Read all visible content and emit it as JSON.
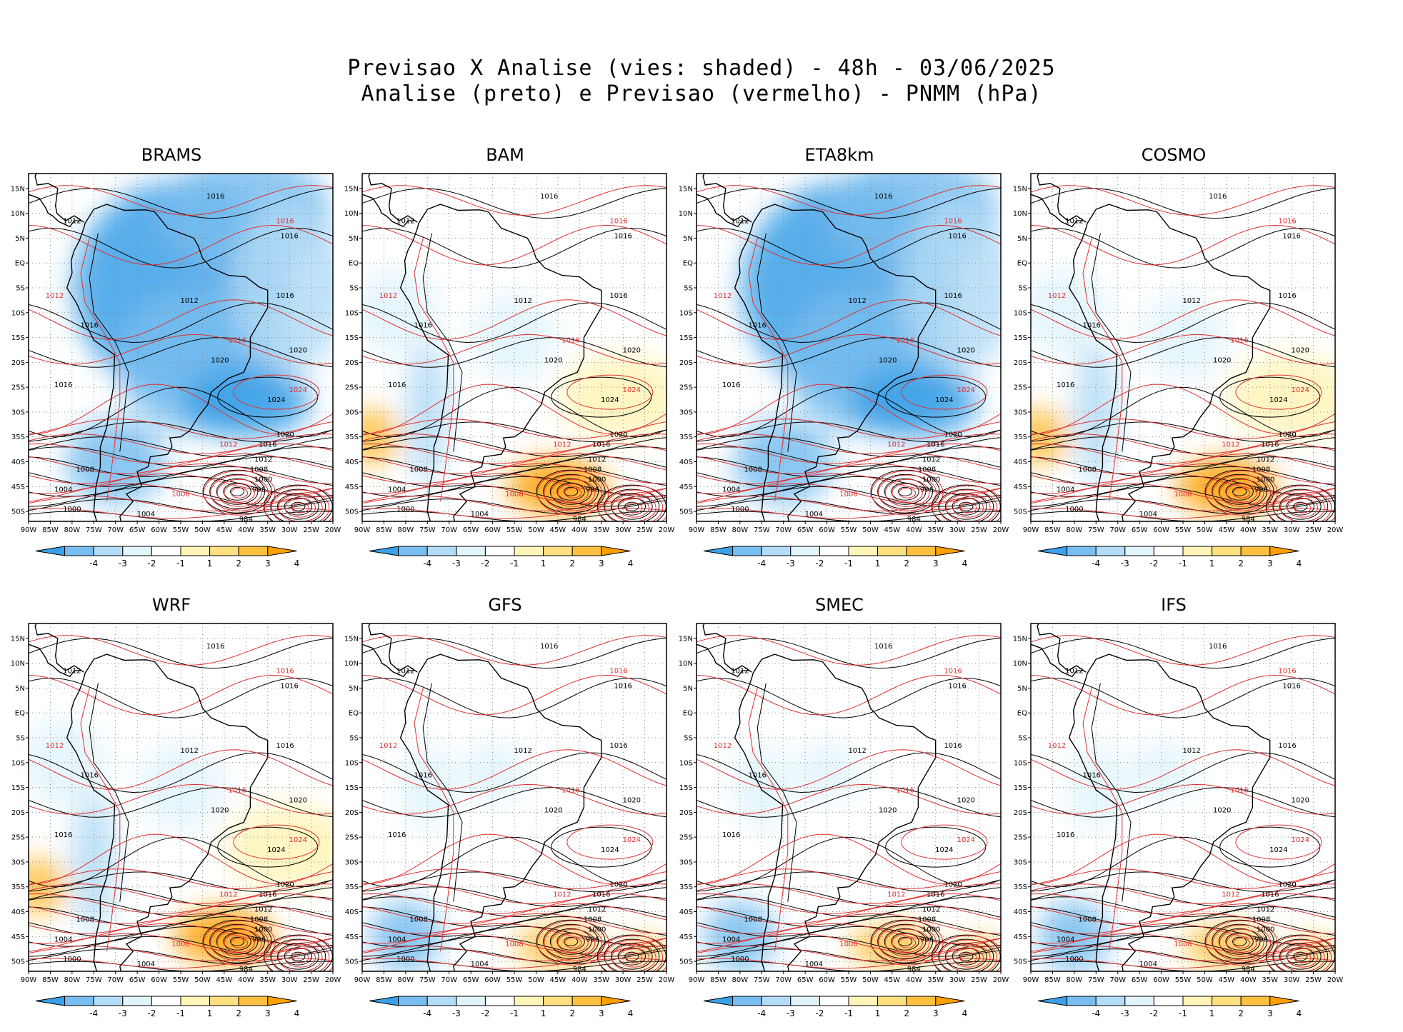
{
  "title_line1": "Previsao X Analise (vies: shaded) - 48h - 03/06/2025",
  "title_line2": "Analise (preto) e Previsao (vermelho) - PNMM (hPa)",
  "axes": {
    "lat_labels": [
      "15N",
      "10N",
      "5N",
      "EQ",
      "5S",
      "10S",
      "15S",
      "20S",
      "25S",
      "30S",
      "35S",
      "40S",
      "45S",
      "50S"
    ],
    "lon_labels": [
      "90W",
      "85W",
      "80W",
      "75W",
      "70W",
      "65W",
      "60W",
      "55W",
      "50W",
      "45W",
      "40W",
      "35W",
      "30W",
      "25W",
      "20W"
    ]
  },
  "colorbar": {
    "labels": [
      "-4",
      "-3",
      "-2",
      "-1",
      "1",
      "2",
      "3",
      "4"
    ],
    "colors": [
      "#3aa0e8",
      "#78bef0",
      "#b4dcf6",
      "#e2f4fb",
      "#ffffff",
      "#fff5b8",
      "#ffe080",
      "#ffc040",
      "#ffa000"
    ]
  },
  "colors": {
    "analysis_isobar": "#000000",
    "forecast_isobar": "#e03030",
    "coast": "#000000",
    "grid": "#808080"
  },
  "panels": [
    {
      "name": "BRAMS",
      "bias": "neg"
    },
    {
      "name": "BAM",
      "bias": "mixed"
    },
    {
      "name": "ETA8km",
      "bias": "neg"
    },
    {
      "name": "COSMO",
      "bias": "mixed"
    },
    {
      "name": "WRF",
      "bias": "mixed"
    },
    {
      "name": "GFS",
      "bias": "light"
    },
    {
      "name": "SMEC",
      "bias": "light"
    },
    {
      "name": "IFS",
      "bias": "light"
    }
  ],
  "isobar_labels": [
    {
      "v": "1016",
      "c": "k",
      "lon": -47,
      "lat": 13
    },
    {
      "v": "1016",
      "c": "r",
      "lon": -31,
      "lat": 8
    },
    {
      "v": "1016",
      "c": "k",
      "lon": -30,
      "lat": 5
    },
    {
      "v": "1012",
      "c": "k",
      "lon": -80,
      "lat": 8
    },
    {
      "v": "1012",
      "c": "r",
      "lon": -84,
      "lat": -7
    },
    {
      "v": "1012",
      "c": "k",
      "lon": -53,
      "lat": -8
    },
    {
      "v": "1016",
      "c": "k",
      "lon": -31,
      "lat": -7
    },
    {
      "v": "1016",
      "c": "k",
      "lon": -76,
      "lat": -13
    },
    {
      "v": "1016",
      "c": "r",
      "lon": -42,
      "lat": -16
    },
    {
      "v": "1020",
      "c": "k",
      "lon": -28,
      "lat": -18
    },
    {
      "v": "1016",
      "c": "k",
      "lon": -82,
      "lat": -25
    },
    {
      "v": "1020",
      "c": "k",
      "lon": -46,
      "lat": -20
    },
    {
      "v": "1024",
      "c": "k",
      "lon": -33,
      "lat": -28
    },
    {
      "v": "1024",
      "c": "r",
      "lon": -28,
      "lat": -26
    },
    {
      "v": "1020",
      "c": "k",
      "lon": -31,
      "lat": -35
    },
    {
      "v": "1016",
      "c": "k",
      "lon": -35,
      "lat": -37
    },
    {
      "v": "1012",
      "c": "r",
      "lon": -44,
      "lat": -37
    },
    {
      "v": "1008",
      "c": "k",
      "lon": -77,
      "lat": -42
    },
    {
      "v": "1012",
      "c": "k",
      "lon": -36,
      "lat": -40
    },
    {
      "v": "1008",
      "c": "k",
      "lon": -37,
      "lat": -42
    },
    {
      "v": "1004",
      "c": "k",
      "lon": -82,
      "lat": -46
    },
    {
      "v": "1000",
      "c": "k",
      "lon": -36,
      "lat": -44
    },
    {
      "v": "996",
      "c": "k",
      "lon": -37,
      "lat": -46
    },
    {
      "v": "1008",
      "c": "r",
      "lon": -55,
      "lat": -47
    },
    {
      "v": "1000",
      "c": "k",
      "lon": -80,
      "lat": -50
    },
    {
      "v": "1004",
      "c": "k",
      "lon": -63,
      "lat": -51
    },
    {
      "v": "984",
      "c": "k",
      "lon": -40,
      "lat": -52
    }
  ]
}
